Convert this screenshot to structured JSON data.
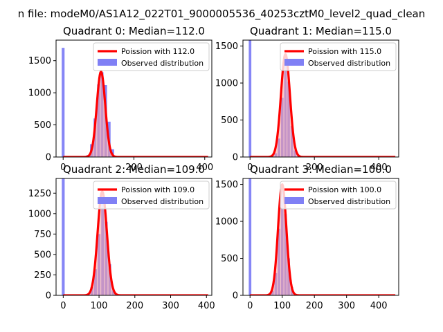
{
  "suptitle": "n file: modeM0/AS1A12_022T01_9000005536_40253cztM0_level2_quad_clean",
  "chart_data": [
    {
      "type": "bar",
      "title": "Quadrant 0: Median=112.0",
      "xlim": [
        -20,
        420
      ],
      "ylim": [
        0,
        1820
      ],
      "xticks": [
        0,
        200,
        400
      ],
      "yticks": [
        0,
        500,
        1000,
        1500
      ],
      "median": 112,
      "curve_mean": 107,
      "curve_sigma": 12,
      "curve_peak": 1330,
      "zero_bin_count": 1700,
      "bins": [
        [
          0,
          1700
        ],
        [
          60,
          5
        ],
        [
          70,
          30
        ],
        [
          80,
          200
        ],
        [
          90,
          600
        ],
        [
          100,
          1130
        ],
        [
          110,
          1320
        ],
        [
          120,
          1120
        ],
        [
          130,
          550
        ],
        [
          140,
          120
        ],
        [
          150,
          15
        ]
      ],
      "bin_width": 8,
      "legend": [
        "Poission with 112.0",
        "Observed distribution"
      ]
    },
    {
      "type": "bar",
      "title": "Quadrant 1: Median=115.0",
      "xlim": [
        -22,
        462
      ],
      "ylim": [
        0,
        1580
      ],
      "xticks": [
        0,
        200,
        400
      ],
      "yticks": [
        0,
        500,
        1000,
        1500
      ],
      "median": 115,
      "curve_mean": 110,
      "curve_sigma": 14,
      "curve_peak": 1390,
      "zero_bin_count": 1580,
      "bins": [
        [
          0,
          1580
        ],
        [
          70,
          10
        ],
        [
          80,
          50
        ],
        [
          90,
          250
        ],
        [
          100,
          800
        ],
        [
          110,
          1370
        ],
        [
          120,
          1020
        ],
        [
          130,
          420
        ],
        [
          140,
          90
        ],
        [
          150,
          15
        ]
      ],
      "bin_width": 8,
      "legend": [
        "Poission with 115.0",
        "Observed distribution"
      ]
    },
    {
      "type": "bar",
      "title": "Quadrant 2: Median=109.0",
      "xlim": [
        -20,
        415
      ],
      "ylim": [
        0,
        1430
      ],
      "xticks": [
        0,
        100,
        200,
        300,
        400
      ],
      "yticks": [
        0,
        250,
        500,
        750,
        1000,
        1250
      ],
      "median": 109,
      "curve_mean": 109,
      "curve_sigma": 13,
      "curve_peak": 1270,
      "zero_bin_count": 1430,
      "bins": [
        [
          0,
          1430
        ],
        [
          70,
          20
        ],
        [
          80,
          100
        ],
        [
          90,
          320
        ],
        [
          100,
          750
        ],
        [
          110,
          1260
        ],
        [
          120,
          900
        ],
        [
          130,
          380
        ],
        [
          140,
          60
        ]
      ],
      "bin_width": 8,
      "legend": [
        "Poission with 109.0",
        "Observed distribution"
      ]
    },
    {
      "type": "bar",
      "title": "Quadrant 3: Median=100.0",
      "xlim": [
        -22,
        462
      ],
      "ylim": [
        0,
        1580
      ],
      "xticks": [
        0,
        100,
        200,
        300,
        400
      ],
      "yticks": [
        0,
        500,
        1000,
        1500
      ],
      "median": 100,
      "curve_mean": 100,
      "curve_sigma": 13,
      "curve_peak": 1500,
      "zero_bin_count": 1580,
      "bins": [
        [
          0,
          1580
        ],
        [
          60,
          10
        ],
        [
          70,
          60
        ],
        [
          80,
          300
        ],
        [
          90,
          900
        ],
        [
          100,
          1480
        ],
        [
          110,
          1100
        ],
        [
          120,
          500
        ],
        [
          130,
          110
        ],
        [
          140,
          20
        ]
      ],
      "bin_width": 8,
      "legend": [
        "Poission with 100.0",
        "Observed distribution"
      ]
    }
  ],
  "colors": {
    "bar": "#8080f5",
    "curve": "#ff0000",
    "curve_fill": "#f7a0a0",
    "axis": "#000000"
  }
}
